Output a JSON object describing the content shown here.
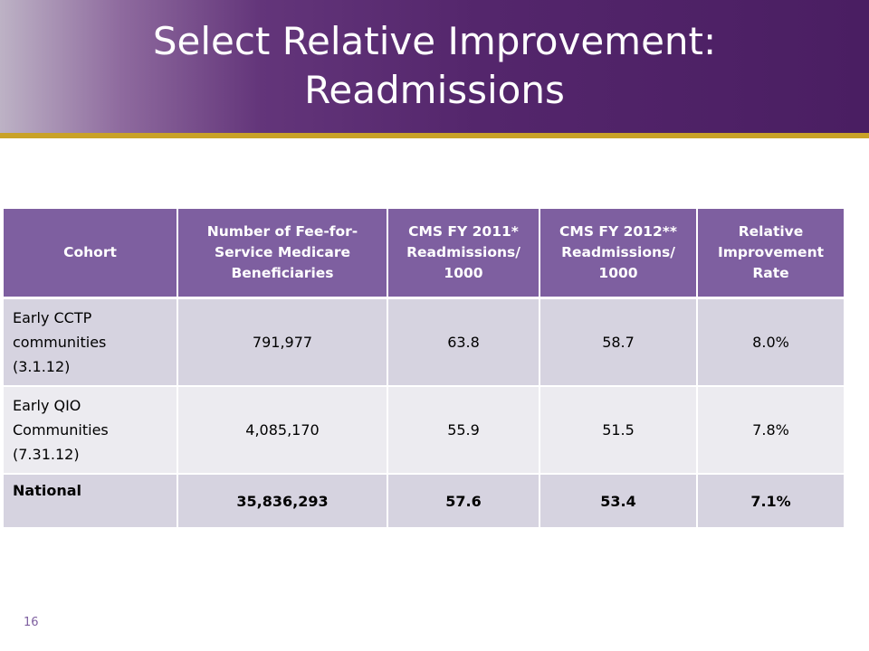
{
  "slide": {
    "title_line1": "Select Relative Improvement:",
    "title_line2": "Readmissions",
    "number": "16"
  },
  "colors": {
    "banner_purple": "#54266c",
    "accent_gold": "#c9a227",
    "header_purple": "#7e5fa0",
    "row_dark": "#d6d3e0",
    "row_light": "#ecebf0"
  },
  "table": {
    "headers": [
      "Cohort",
      "Number of Fee-for-Service Medicare Beneficiaries",
      "CMS FY 2011* Readmissions/ 1000",
      "CMS FY 2012** Readmissions/ 1000",
      "Relative Improvement Rate"
    ],
    "rows": [
      {
        "cohort_lines": [
          "Early CCTP",
          "communities",
          "(3.1.12)"
        ],
        "beneficiaries": "791,977",
        "fy2011": "63.8",
        "fy2012": "58.7",
        "improvement": "8.0%"
      },
      {
        "cohort_lines": [
          "Early QIO",
          "Communities",
          "(7.31.12)"
        ],
        "beneficiaries": "4,085,170",
        "fy2011": "55.9",
        "fy2012": "51.5",
        "improvement": "7.8%"
      },
      {
        "cohort_lines": [
          "National"
        ],
        "beneficiaries": "35,836,293",
        "fy2011": "57.6",
        "fy2012": "53.4",
        "improvement": "7.1%"
      }
    ]
  }
}
